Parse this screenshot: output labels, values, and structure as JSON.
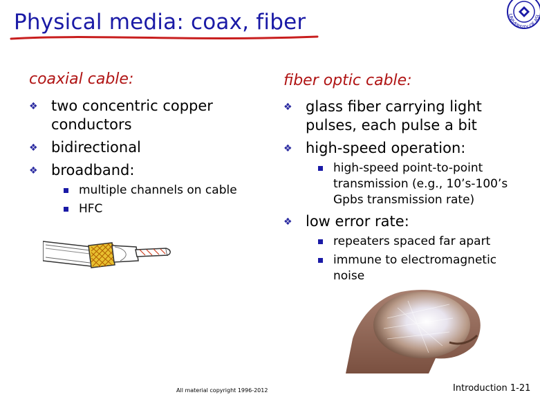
{
  "slide": {
    "title": "Physical media: coax, fiber",
    "logo_text": "UNIVERSITY OF ASIA"
  },
  "left": {
    "heading": "coaxial cable:",
    "items": [
      {
        "text_line1": "two concentric copper",
        "text_line2": "conductors"
      },
      {
        "text": "bidirectional"
      },
      {
        "text": "broadband:"
      }
    ],
    "sub_items": [
      "multiple channels on cable",
      "HFC"
    ]
  },
  "right": {
    "heading": "fiber optic cable:",
    "items": [
      {
        "text_line1": "glass fiber carrying light",
        "text_line2": "pulses, each pulse a bit"
      },
      {
        "text": "high-speed operation:"
      },
      {
        "text": "low error rate:"
      }
    ],
    "speed_sub": {
      "line1": "high-speed point-to-point",
      "line2": "transmission (e.g., 10’s-100’s",
      "line3": "Gpbs transmission rate)"
    },
    "error_subs": [
      {
        "line1": "repeaters spaced far apart"
      },
      {
        "line1": "immune to electromagnetic",
        "line2": "noise"
      }
    ]
  },
  "footer": {
    "copyright": "All material copyright 1996-2012",
    "slide_number": "Introduction 1-21"
  },
  "colors": {
    "title": "#1a1aa6",
    "heading": "#b01414",
    "underline": "#c81e1e"
  }
}
